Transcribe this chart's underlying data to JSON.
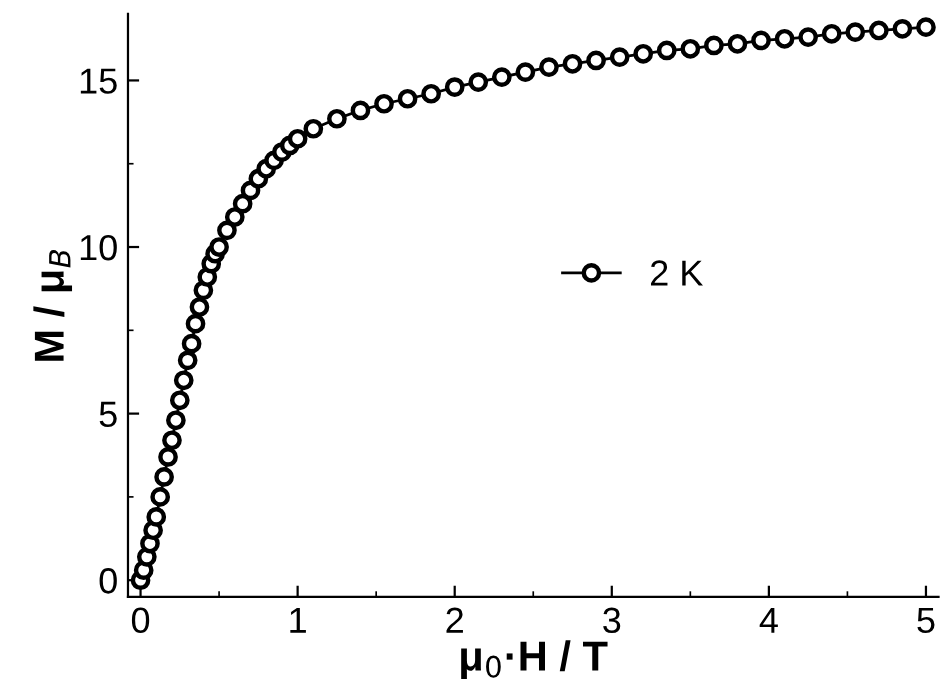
{
  "chart_data": {
    "type": "line",
    "xlabel": "μ$_{0}$·H / T",
    "ylabel": "M / μ$_{B}$",
    "xlim": [
      -0.08,
      5.08
    ],
    "ylim": [
      -0.5,
      17
    ],
    "xticks": [
      0,
      1,
      2,
      3,
      4,
      5
    ],
    "yticks": [
      0,
      5,
      10,
      15
    ],
    "marker": "circle",
    "line_style": "solid",
    "legend": "right",
    "grid": false,
    "series": [
      {
        "name": "2 K",
        "color": "#000000",
        "x": [
          0,
          0.02,
          0.04,
          0.06,
          0.08,
          0.1,
          0.125,
          0.15,
          0.175,
          0.2,
          0.225,
          0.25,
          0.275,
          0.3,
          0.325,
          0.35,
          0.375,
          0.4,
          0.425,
          0.45,
          0.475,
          0.5,
          0.55,
          0.6,
          0.65,
          0.7,
          0.75,
          0.8,
          0.85,
          0.9,
          0.95,
          1.0,
          1.1,
          1.25,
          1.4,
          1.55,
          1.7,
          1.85,
          2.0,
          2.15,
          2.3,
          2.45,
          2.6,
          2.75,
          2.9,
          3.05,
          3.2,
          3.35,
          3.5,
          3.65,
          3.8,
          3.95,
          4.1,
          4.25,
          4.4,
          4.55,
          4.7,
          4.85,
          5.0
        ],
        "values": [
          0,
          0.3,
          0.7,
          1.1,
          1.5,
          1.9,
          2.5,
          3.1,
          3.7,
          4.2,
          4.8,
          5.4,
          6.0,
          6.6,
          7.1,
          7.7,
          8.2,
          8.7,
          9.1,
          9.5,
          9.8,
          10.0,
          10.5,
          10.9,
          11.3,
          11.7,
          12.05,
          12.35,
          12.6,
          12.85,
          13.05,
          13.25,
          13.55,
          13.85,
          14.1,
          14.3,
          14.45,
          14.6,
          14.8,
          14.95,
          15.1,
          15.25,
          15.4,
          15.5,
          15.6,
          15.7,
          15.8,
          15.9,
          15.95,
          16.05,
          16.1,
          16.2,
          16.25,
          16.3,
          16.4,
          16.45,
          16.5,
          16.55,
          16.6
        ]
      }
    ]
  }
}
